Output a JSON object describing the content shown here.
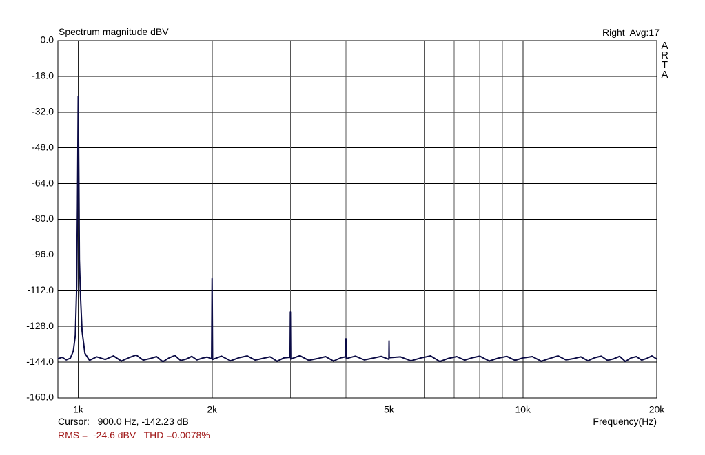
{
  "chart_data": {
    "type": "line",
    "title": "Spectrum magnitude dBV",
    "status": "Right  Avg:17",
    "side_label": "ARTA",
    "x_label": "Frequency(Hz)",
    "cursor": "Cursor:   900.0 Hz, -142.23 dB",
    "measurement": "RMS =  -24.6 dBV   THD =0.0078%",
    "log_x": true,
    "grid": true,
    "xlim": [
      900,
      20000
    ],
    "ylim": [
      -160,
      0
    ],
    "xticks": [
      {
        "value": 1000,
        "label": "1k"
      },
      {
        "value": 2000,
        "label": "2k"
      },
      {
        "value": 5000,
        "label": "5k"
      },
      {
        "value": 10000,
        "label": "10k"
      },
      {
        "value": 20000,
        "label": "20k"
      }
    ],
    "xminor_ticks": [
      3000,
      4000,
      6000,
      7000,
      8000,
      9000
    ],
    "yticks": [
      {
        "value": 0,
        "label": "0.0"
      },
      {
        "value": -16,
        "label": "-16.0"
      },
      {
        "value": -32,
        "label": "-32.0"
      },
      {
        "value": -48,
        "label": "-48.0"
      },
      {
        "value": -64,
        "label": "-64.0"
      },
      {
        "value": -80,
        "label": "-80.0"
      },
      {
        "value": -96,
        "label": "-96.0"
      },
      {
        "value": -112,
        "label": "-112.0"
      },
      {
        "value": -128,
        "label": "-128.0"
      },
      {
        "value": -144,
        "label": "-144.0"
      },
      {
        "value": -160,
        "label": "-160.0"
      }
    ],
    "x": [
      900,
      920,
      940,
      960,
      975,
      985,
      992,
      996,
      1000,
      1003,
      1006,
      1012,
      1020,
      1035,
      1060,
      1100,
      1150,
      1200,
      1250,
      1300,
      1350,
      1400,
      1450,
      1500,
      1550,
      1600,
      1650,
      1700,
      1750,
      1800,
      1850,
      1900,
      1950,
      1995,
      2000,
      2005,
      2100,
      2200,
      2300,
      2400,
      2500,
      2600,
      2700,
      2800,
      2900,
      2995,
      3000,
      3005,
      3150,
      3300,
      3450,
      3600,
      3750,
      3900,
      3995,
      4000,
      4005,
      4200,
      4400,
      4600,
      4800,
      4995,
      5000,
      5005,
      5300,
      5600,
      5900,
      6200,
      6500,
      6800,
      7100,
      7400,
      7700,
      8000,
      8400,
      8800,
      9200,
      9600,
      10000,
      10500,
      11000,
      11500,
      12000,
      12500,
      13000,
      13500,
      14000,
      14500,
      15000,
      15500,
      16000,
      16500,
      17000,
      17500,
      18000,
      18500,
      19000,
      19500,
      20000
    ],
    "series": [
      {
        "color": "#0b0b45",
        "values": [
          -142.5,
          -141.8,
          -143.0,
          -142.2,
          -139,
          -132,
          -110,
          -75,
          -25,
          -58,
          -98,
          -115,
          -130,
          -140,
          -143.2,
          -141.6,
          -142.8,
          -141.2,
          -143.5,
          -142.0,
          -140.8,
          -143.1,
          -142.4,
          -141.5,
          -143.8,
          -142.1,
          -141.0,
          -143.3,
          -142.6,
          -141.4,
          -143.0,
          -142.2,
          -141.7,
          -142.5,
          -106.5,
          -142.8,
          -141.3,
          -143.4,
          -142.0,
          -141.2,
          -143.1,
          -142.3,
          -141.6,
          -143.6,
          -142.1,
          -141.8,
          -121.5,
          -142.6,
          -141.1,
          -143.2,
          -142.4,
          -141.5,
          -143.5,
          -142.0,
          -141.6,
          -133.5,
          -142.4,
          -141.3,
          -143.0,
          -142.2,
          -141.4,
          -142.7,
          -134.5,
          -142.0,
          -141.6,
          -143.4,
          -142.1,
          -141.2,
          -143.7,
          -142.3,
          -141.5,
          -143.1,
          -142.0,
          -141.3,
          -143.5,
          -142.2,
          -141.4,
          -143.2,
          -142.1,
          -141.5,
          -143.6,
          -142.3,
          -141.2,
          -143.0,
          -142.4,
          -141.6,
          -143.4,
          -142.0,
          -141.3,
          -143.2,
          -142.5,
          -141.4,
          -143.7,
          -142.1,
          -141.5,
          -143.1,
          -142.3,
          -141.2,
          -142.6
        ]
      }
    ]
  }
}
